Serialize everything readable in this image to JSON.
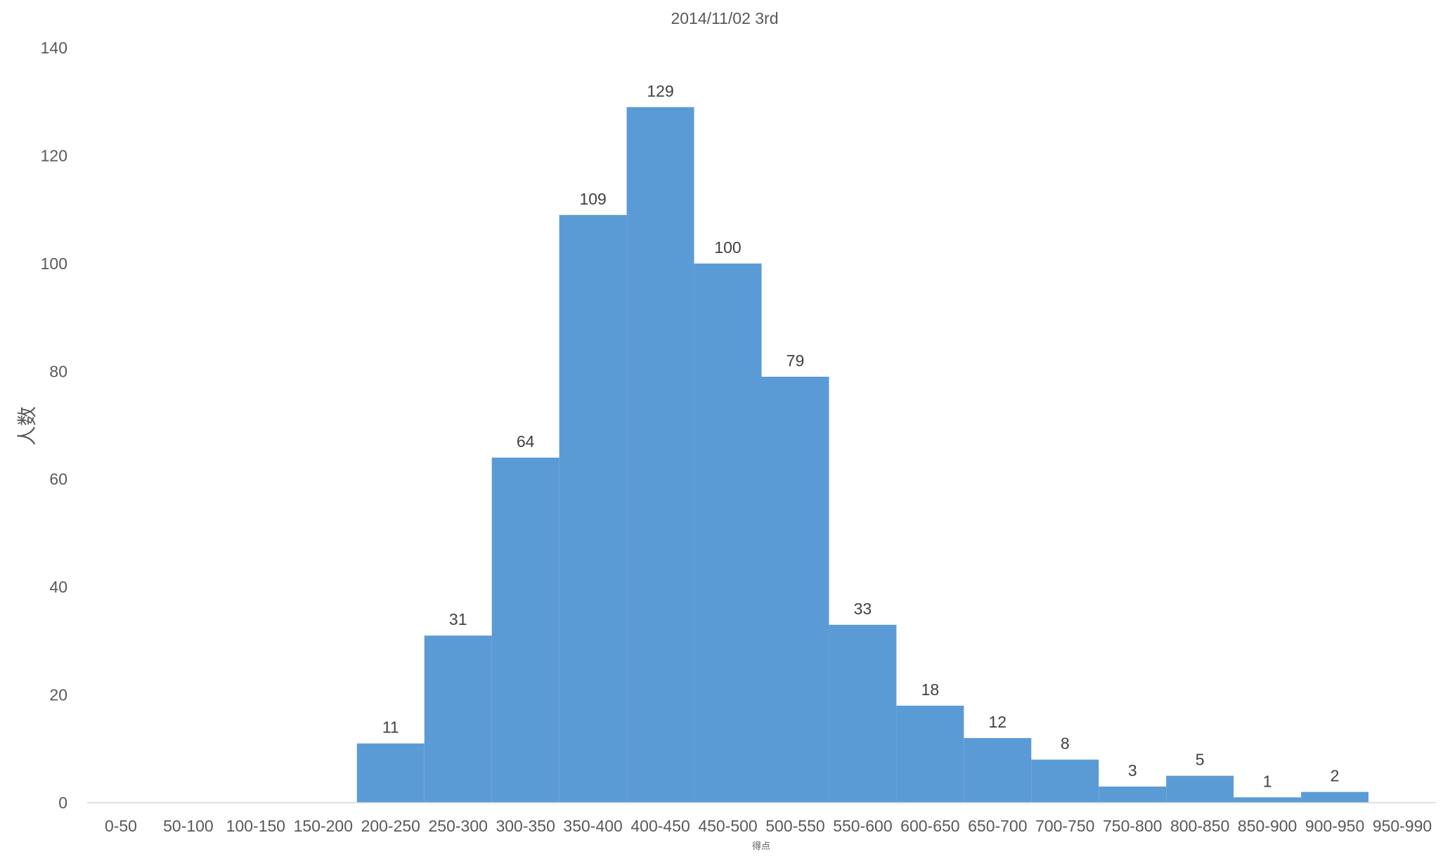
{
  "colors": {
    "bar": "#5b9bd5",
    "axis_line": "#d9d9d9",
    "text": "#595959",
    "data_label": "#404040",
    "background": "#ffffff"
  },
  "chart_data": {
    "type": "bar",
    "title": "2014/11/02 3rd",
    "xlabel": "得点",
    "ylabel": "人数",
    "categories": [
      "0-50",
      "50-100",
      "100-150",
      "150-200",
      "200-250",
      "250-300",
      "300-350",
      "350-400",
      "400-450",
      "450-500",
      "500-550",
      "550-600",
      "600-650",
      "650-700",
      "700-750",
      "750-800",
      "800-850",
      "850-900",
      "900-950",
      "950-990"
    ],
    "values": [
      0,
      0,
      0,
      0,
      11,
      31,
      64,
      109,
      129,
      100,
      79,
      33,
      18,
      12,
      8,
      3,
      5,
      1,
      2,
      0
    ],
    "data_labels": [
      "",
      "",
      "",
      "",
      "11",
      "31",
      "64",
      "109",
      "129",
      "100",
      "79",
      "33",
      "18",
      "12",
      "8",
      "3",
      "5",
      "1",
      "2",
      ""
    ],
    "ylim": [
      0,
      140
    ],
    "yticks": [
      "0",
      "20",
      "40",
      "60",
      "80",
      "100",
      "120",
      "140"
    ],
    "grid": false,
    "legend": "none",
    "gap_width": 0
  }
}
